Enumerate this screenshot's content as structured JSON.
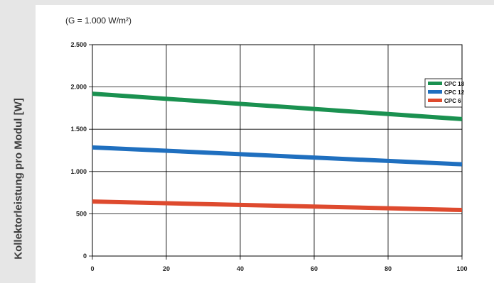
{
  "chart_data": {
    "type": "line",
    "title": "",
    "subtitle": "(G = 1.000 W/m²)",
    "xlabel": "",
    "ylabel": "Kollektorleistung pro Modul [W]",
    "xlim": [
      0,
      100
    ],
    "ylim": [
      0,
      2500
    ],
    "x_ticks": [
      {
        "value": 0,
        "label": "0"
      },
      {
        "value": 20,
        "label": "20"
      },
      {
        "value": 40,
        "label": "40"
      },
      {
        "value": 60,
        "label": "60"
      },
      {
        "value": 80,
        "label": "80"
      },
      {
        "value": 100,
        "label": "100"
      }
    ],
    "y_ticks": [
      {
        "value": 0,
        "label": "0"
      },
      {
        "value": 500,
        "label": "500"
      },
      {
        "value": 1000,
        "label": "1.000"
      },
      {
        "value": 1500,
        "label": "1.500"
      },
      {
        "value": 2000,
        "label": "2.000"
      },
      {
        "value": 2500,
        "label": "2.500"
      }
    ],
    "grid": true,
    "legend_position": "top-right",
    "series": [
      {
        "name": "CPC 18",
        "color": "#1a9150",
        "x": [
          0,
          100
        ],
        "y": [
          1920,
          1620
        ]
      },
      {
        "name": "CPC 12",
        "color": "#1f6fbf",
        "x": [
          0,
          100
        ],
        "y": [
          1285,
          1085
        ]
      },
      {
        "name": "CPC 6",
        "color": "#de4a2e",
        "x": [
          0,
          100
        ],
        "y": [
          645,
          545
        ]
      }
    ]
  }
}
